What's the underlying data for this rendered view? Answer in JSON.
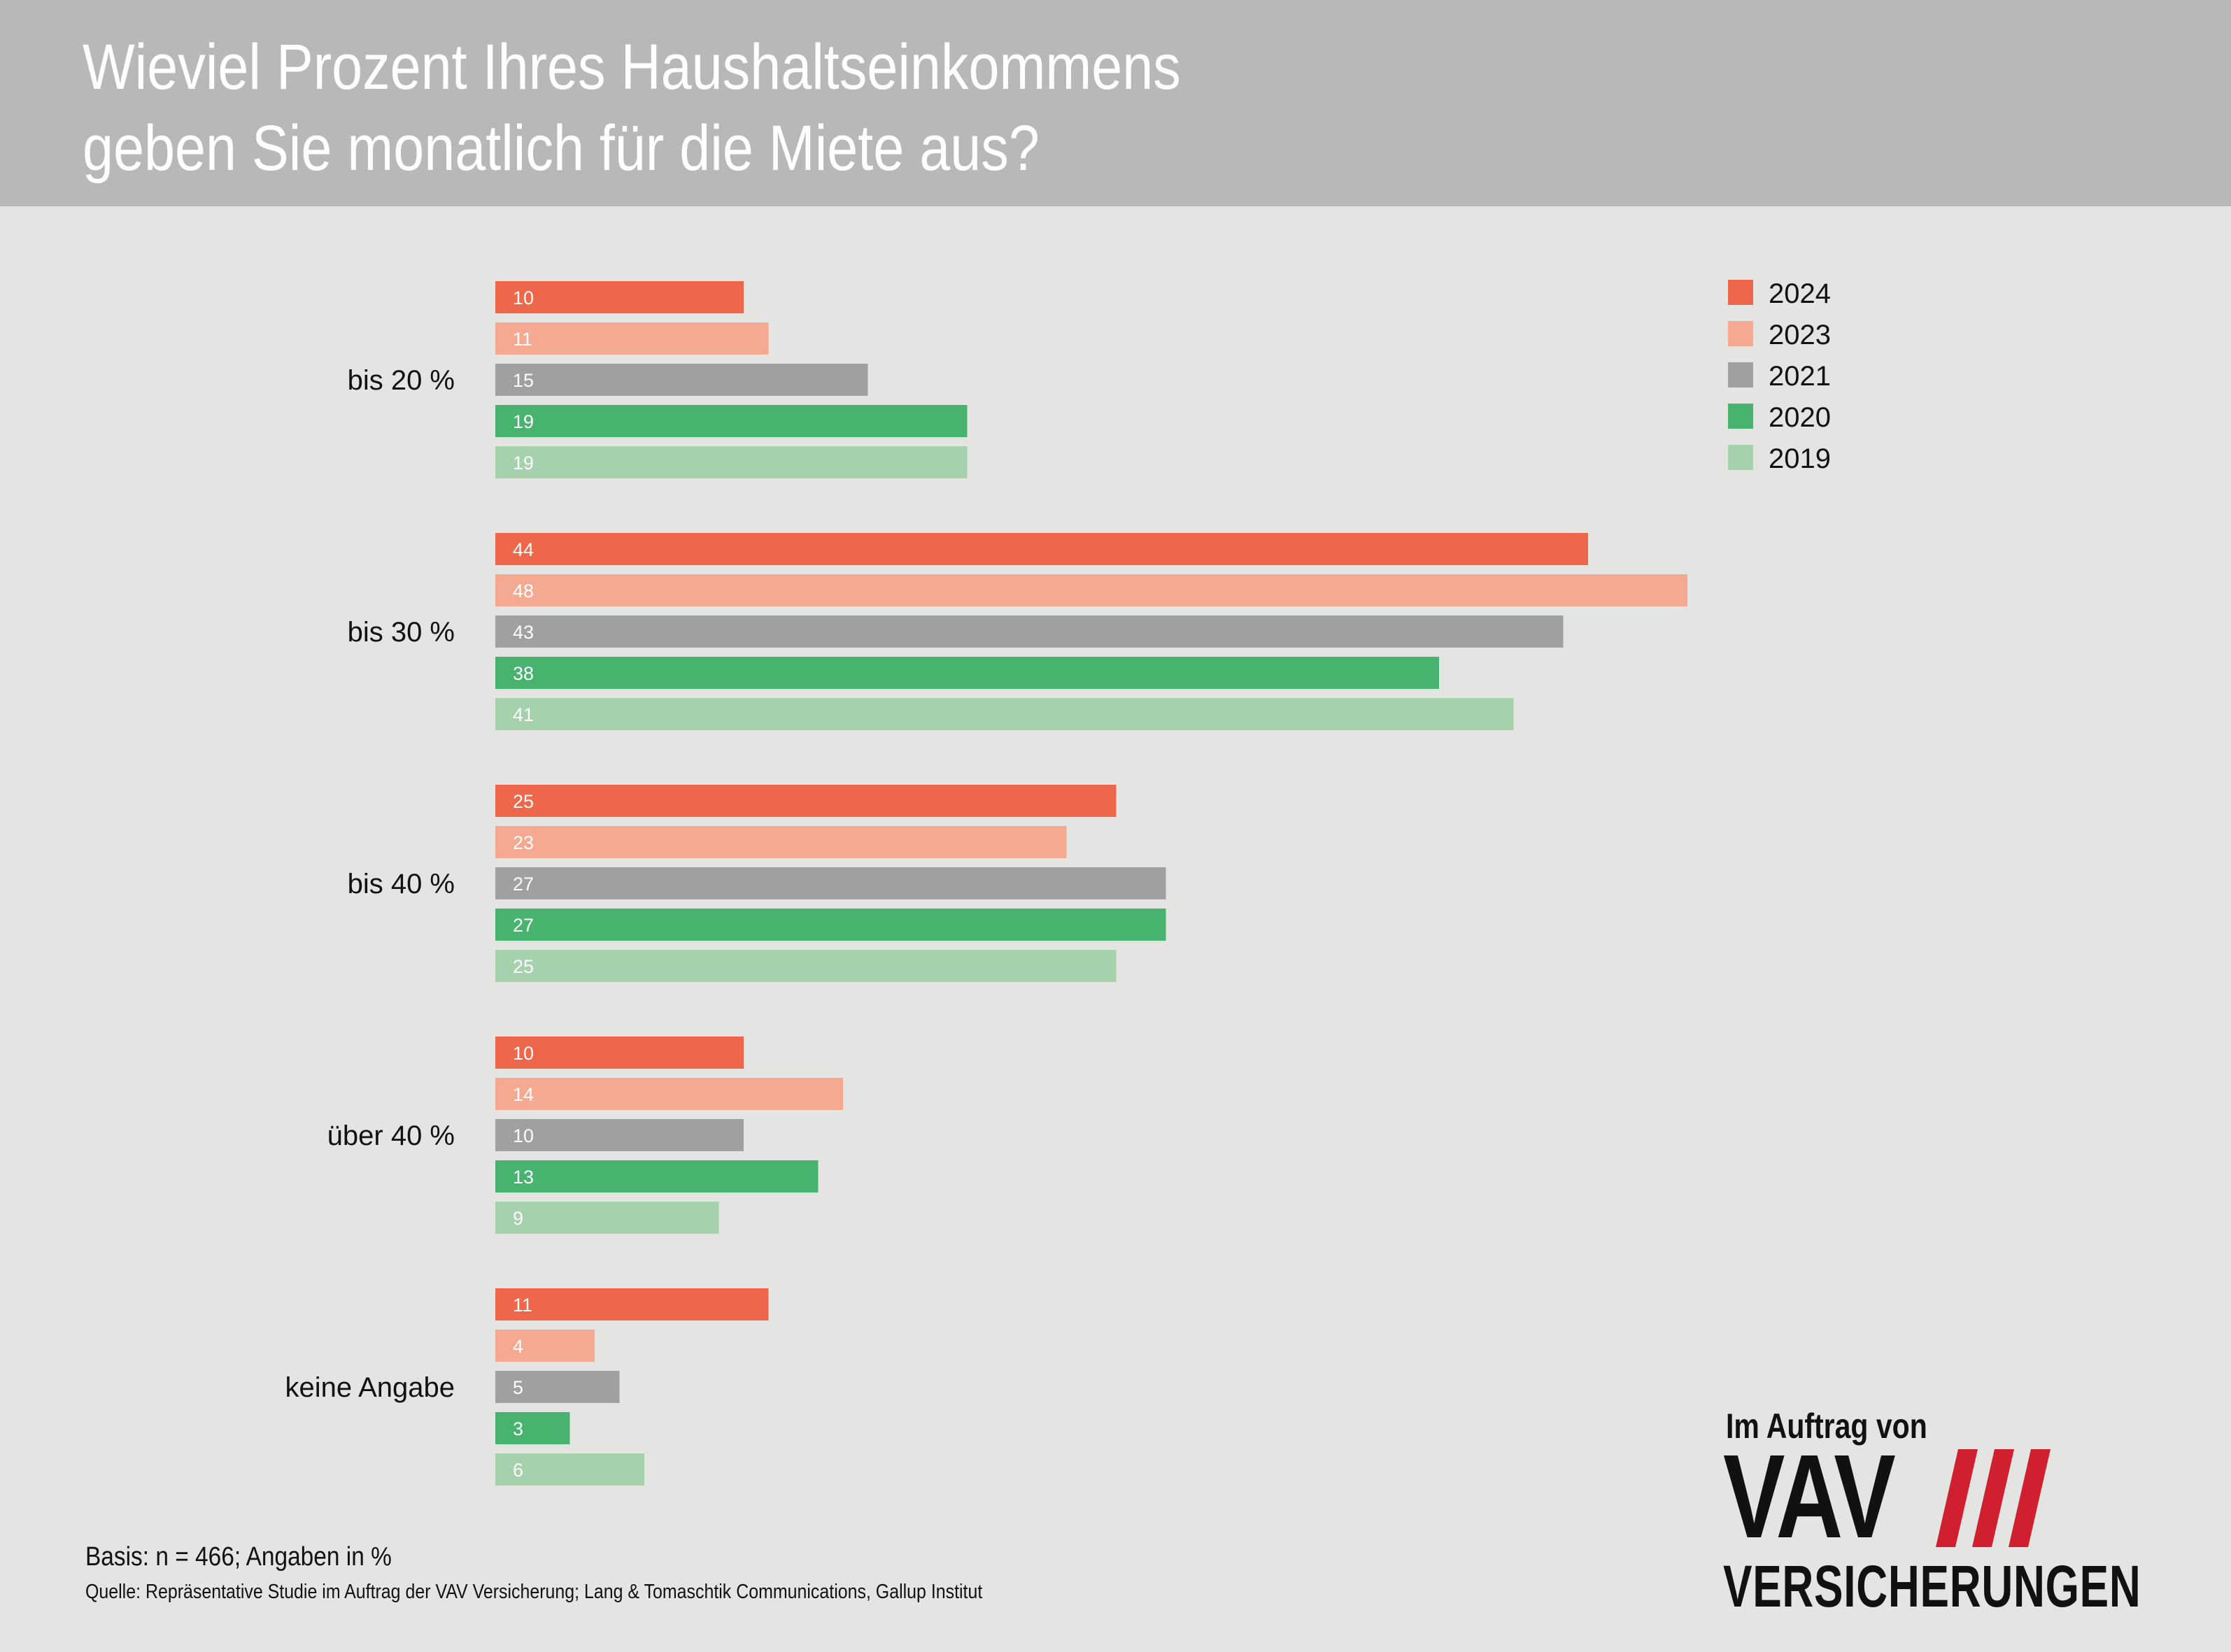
{
  "title": {
    "line1": "Wieviel Prozent Ihres Haushaltseinkommens",
    "line2": "geben Sie monatlich für die Miete aus?"
  },
  "footer": {
    "basis": "Basis: n = 466; Angaben in %",
    "source": "Quelle: Repräsentative Studie im Auftrag der VAV Versicherung; Lang & Tomaschtik Communications, Gallup Institut"
  },
  "logo": {
    "top": "Im Auftrag von",
    "name": "VAV",
    "bottom": "VERSICHERUNGEN",
    "stripe_color": "#d0202f"
  },
  "chart_data": {
    "type": "bar",
    "orientation": "horizontal",
    "categories": [
      "bis 20 %",
      "bis 30 %",
      "bis 40 %",
      "über 40 %",
      "keine Angabe"
    ],
    "series": [
      {
        "name": "2024",
        "color": "#ee674b",
        "values": [
          10,
          44,
          25,
          10,
          11
        ]
      },
      {
        "name": "2023",
        "color": "#f5a991",
        "values": [
          11,
          48,
          23,
          14,
          4
        ]
      },
      {
        "name": "2021",
        "color": "#a0a0a0",
        "values": [
          15,
          43,
          27,
          10,
          5
        ]
      },
      {
        "name": "2020",
        "color": "#48b26f",
        "values": [
          19,
          38,
          27,
          13,
          3
        ]
      },
      {
        "name": "2019",
        "color": "#a5d2ad",
        "values": [
          19,
          41,
          25,
          9,
          6
        ]
      }
    ],
    "xlim": [
      0,
      48
    ],
    "data_labels": true,
    "grid": false,
    "legend_position": "top-right"
  }
}
